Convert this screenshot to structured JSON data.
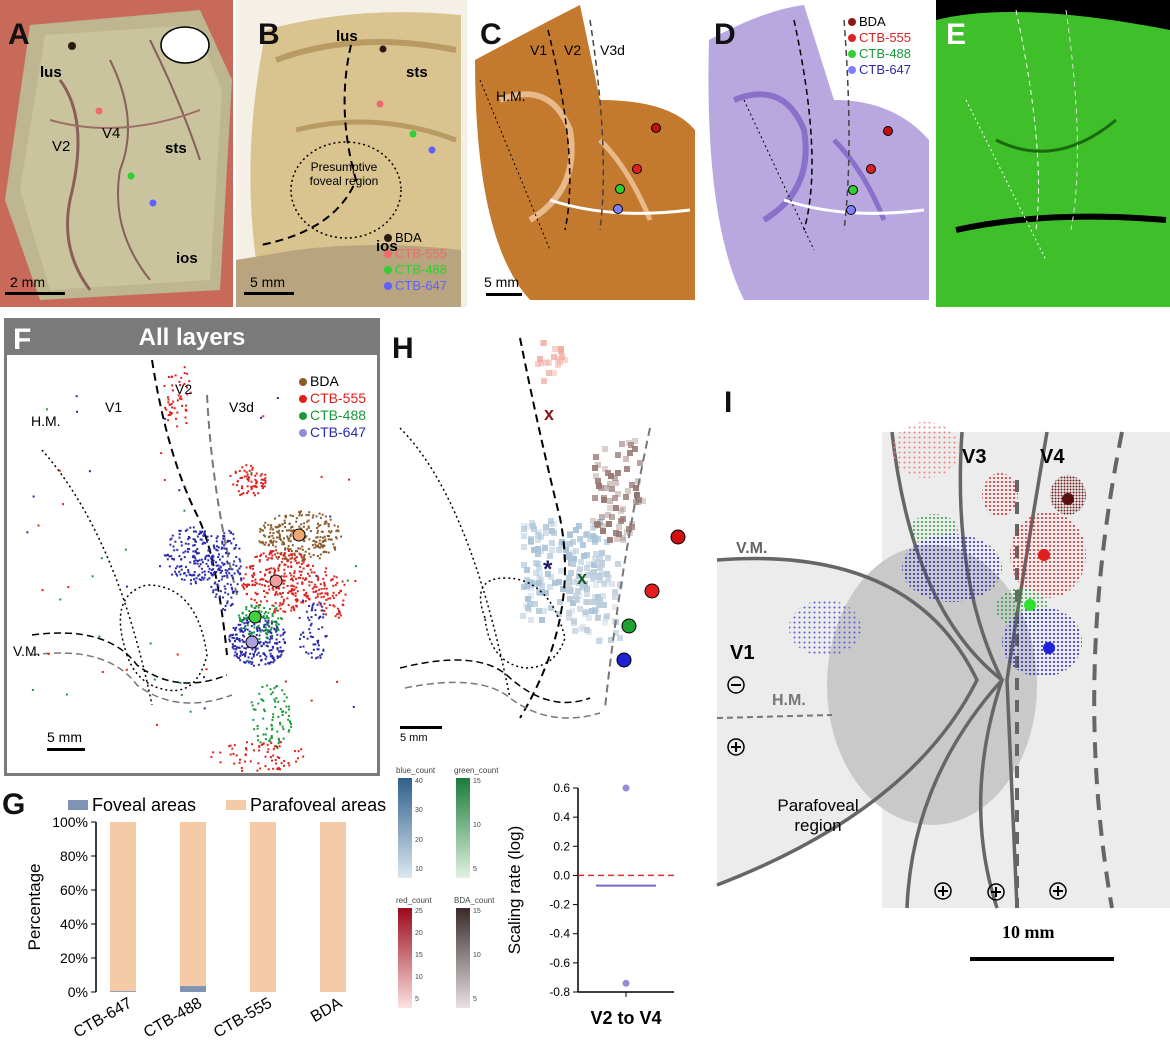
{
  "panels": {
    "A": {
      "letter": "A",
      "labels": {
        "lus": "lus",
        "v2": "V2",
        "v4": "V4",
        "sts": "sts",
        "ios": "ios"
      },
      "scale": "2 mm"
    },
    "B": {
      "letter": "B",
      "labels": {
        "lus": "lus",
        "sts": "sts",
        "ios": "ios",
        "fovea": "Presumptive foveal region"
      },
      "scale": "5 mm",
      "legend": [
        "BDA",
        "CTB-555",
        "CTB-488",
        "CTB-647"
      ]
    },
    "C": {
      "letter": "C",
      "labels": {
        "v1": "V1",
        "v2": "V2",
        "v3d": "V3d",
        "hm": "H.M."
      },
      "scale": "5 mm"
    },
    "D": {
      "letter": "D",
      "legend": [
        "BDA",
        "CTB-555",
        "CTB-488",
        "CTB-647"
      ]
    },
    "E": {
      "letter": "E"
    },
    "F": {
      "letter": "F",
      "title": "All layers",
      "labels": {
        "hm": "H.M.",
        "v1": "V1",
        "v2": "V2",
        "v3d": "V3d",
        "vm": "V.M."
      },
      "legend": [
        "BDA",
        "CTB-555",
        "CTB-488",
        "CTB-647"
      ],
      "scale": "5 mm"
    },
    "H": {
      "letter": "H",
      "scale": "5 mm",
      "marks": {
        "x": "x",
        "star": "*"
      },
      "colorbars": [
        {
          "name": "blue_count",
          "ticks": [
            "40",
            "30",
            "20",
            "10"
          ]
        },
        {
          "name": "green_count",
          "ticks": [
            "15",
            "10",
            "5"
          ]
        },
        {
          "name": "red_count",
          "ticks": [
            "25",
            "20",
            "15",
            "10",
            "5"
          ]
        },
        {
          "name": "BDA_count",
          "ticks": [
            "15",
            "10",
            "5"
          ]
        }
      ]
    },
    "I": {
      "letter": "I",
      "labels": {
        "v3": "V3",
        "v4": "V4",
        "vm": "V.M.",
        "v1": "V1",
        "hm": "H.M.",
        "para": "Parafoveal region"
      },
      "scale": "10 mm"
    },
    "G": {
      "letter": "G"
    }
  },
  "colors": {
    "BDA": "#8b5a2b",
    "CTB-555": "#e0201c",
    "CTB-488": "#1a9a3a",
    "CTB-647": "#2a2aa8",
    "fovealBar": "#7f93b5",
    "parafovealBar": "#f5cba7"
  },
  "chart_data": [
    {
      "type": "bar",
      "stacked": true,
      "categories": [
        "CTB-647",
        "CTB-488",
        "CTB-555",
        "BDA"
      ],
      "series": [
        {
          "name": "Foveal areas",
          "values": [
            0.5,
            3.5,
            0,
            0
          ]
        },
        {
          "name": "Parafoveal areas",
          "values": [
            99.5,
            96.5,
            100,
            100
          ]
        }
      ],
      "xlabel": "",
      "ylabel": "Percentage",
      "ylim": [
        0,
        100
      ],
      "yticks": [
        "0%",
        "20%",
        "40%",
        "60%",
        "80%",
        "100%"
      ],
      "legend_position": "top"
    },
    {
      "type": "scatter",
      "categories": [
        "V2 to V4"
      ],
      "points": [
        0.6,
        -0.74
      ],
      "mean": -0.07,
      "reference_line": 0.0,
      "xlabel": "V2 to V4",
      "ylabel": "Scaling rate (log)",
      "ylim": [
        -0.8,
        0.6
      ],
      "yticks": [
        "0.6",
        "0.4",
        "0.2",
        "0.0",
        "-0.2",
        "-0.4",
        "-0.6",
        "-0.8"
      ]
    }
  ]
}
